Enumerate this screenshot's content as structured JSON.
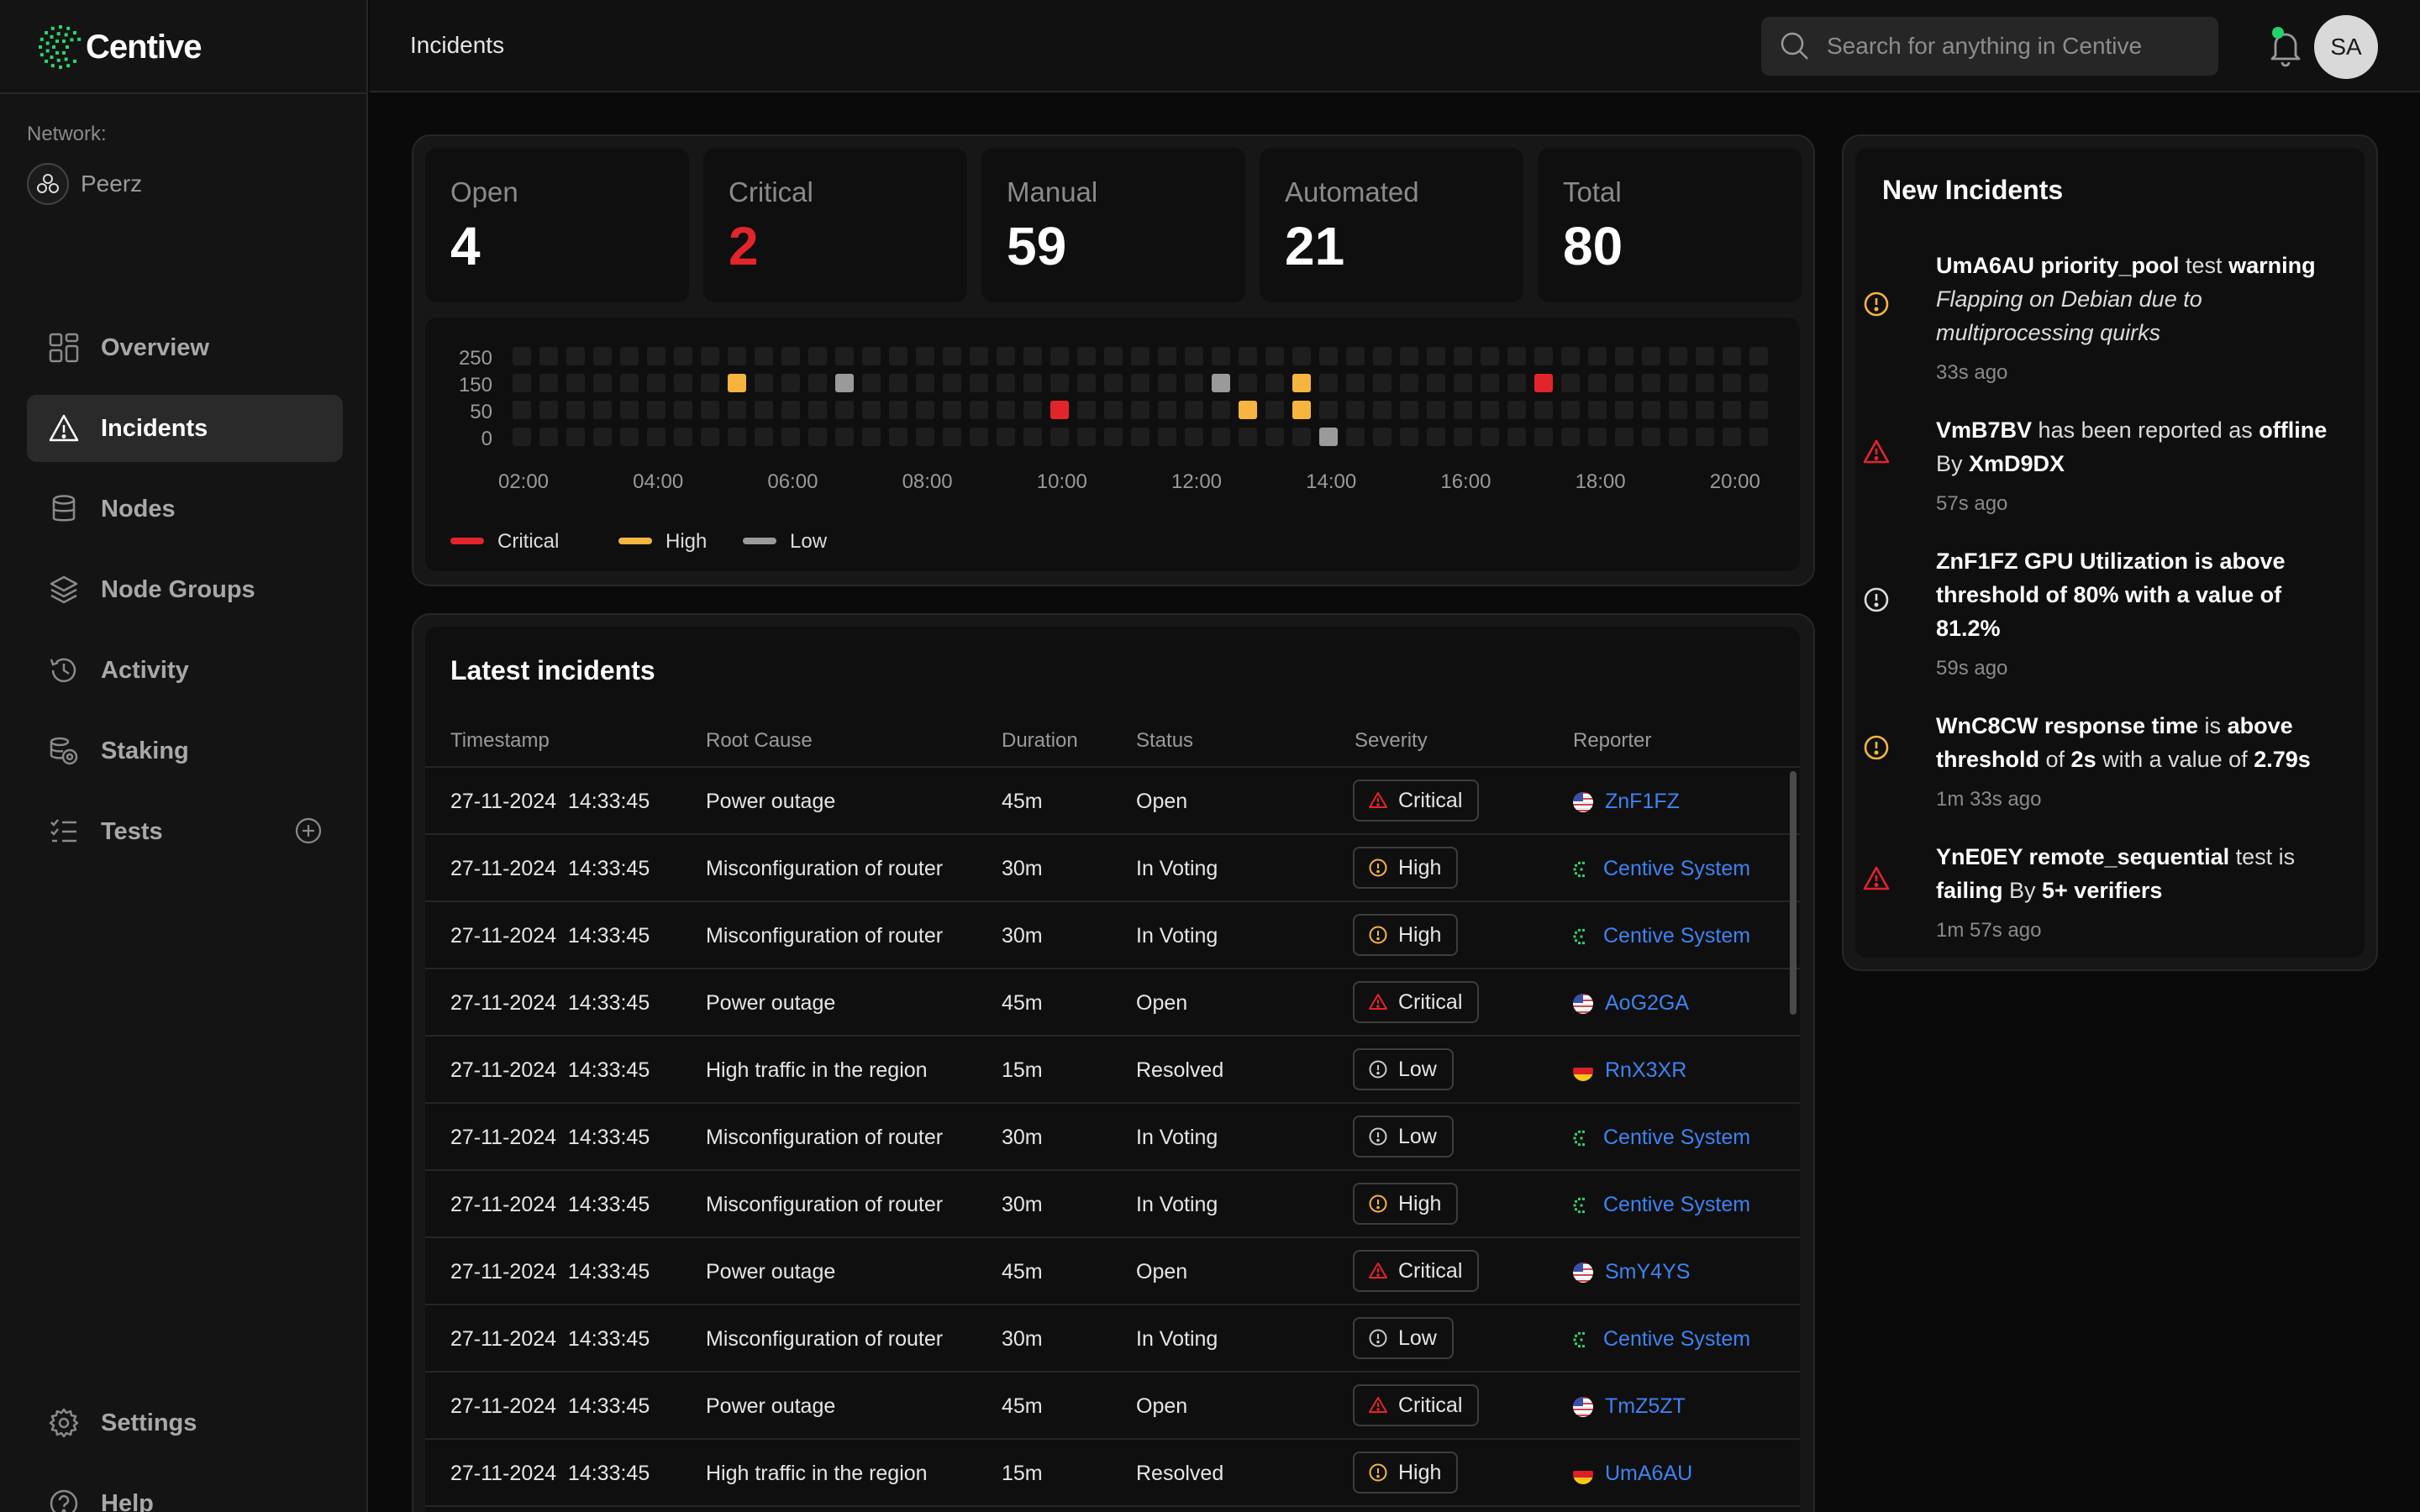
{
  "app": {
    "name": "Centive"
  },
  "sidebar": {
    "network_label": "Network:",
    "network_name": "Peerz",
    "items": [
      {
        "label": "Overview",
        "icon": "grid-icon"
      },
      {
        "label": "Incidents",
        "icon": "alert-triangle-icon",
        "active": true
      },
      {
        "label": "Nodes",
        "icon": "database-icon"
      },
      {
        "label": "Node Groups",
        "icon": "layers-icon"
      },
      {
        "label": "Activity",
        "icon": "history-icon"
      },
      {
        "label": "Staking",
        "icon": "coins-icon"
      },
      {
        "label": "Tests",
        "icon": "checklist-icon",
        "action_icon": "plus-circle-icon"
      }
    ],
    "bottom_items": [
      {
        "label": "Settings",
        "icon": "gear-icon"
      },
      {
        "label": "Help",
        "icon": "help-circle-icon"
      }
    ]
  },
  "header": {
    "title": "Incidents",
    "search_placeholder": "Search for anything in Centive",
    "avatar_initials": "SA"
  },
  "stats": [
    {
      "label": "Open",
      "value": "4"
    },
    {
      "label": "Critical",
      "value": "2",
      "color": "#e3242b"
    },
    {
      "label": "Manual",
      "value": "59"
    },
    {
      "label": "Automated",
      "value": "21"
    },
    {
      "label": "Total",
      "value": "80"
    }
  ],
  "chart_data": {
    "type": "heatmap",
    "y_ticks": [
      "250",
      "150",
      "50",
      "0"
    ],
    "x_ticks": [
      "02:00",
      "04:00",
      "06:00",
      "08:00",
      "10:00",
      "12:00",
      "14:00",
      "16:00",
      "18:00",
      "20:00"
    ],
    "columns": 47,
    "rows": 4,
    "cells": [
      {
        "col": 8,
        "row": 150,
        "severity": "High"
      },
      {
        "col": 12,
        "row": 150,
        "severity": "Low"
      },
      {
        "col": 20,
        "row": 50,
        "severity": "Critical"
      },
      {
        "col": 26,
        "row": 150,
        "severity": "Low"
      },
      {
        "col": 27,
        "row": 50,
        "severity": "High"
      },
      {
        "col": 29,
        "row": 150,
        "severity": "High"
      },
      {
        "col": 29,
        "row": 50,
        "severity": "High"
      },
      {
        "col": 30,
        "row": 0,
        "severity": "Low"
      },
      {
        "col": 38,
        "row": 150,
        "severity": "Critical"
      }
    ],
    "legend": [
      {
        "name": "Critical",
        "color": "#e3242b"
      },
      {
        "name": "High",
        "color": "#f5b53f"
      },
      {
        "name": "Low",
        "color": "#9a9a9a"
      }
    ],
    "empty_color": "#1e1e1e"
  },
  "latest": {
    "title": "Latest incidents",
    "columns": [
      "Timestamp",
      "Root Cause",
      "Duration",
      "Status",
      "Severity",
      "Reporter"
    ],
    "rows": [
      {
        "date": "27-11-2024",
        "time": "14:33:45",
        "cause": "Power outage",
        "duration": "45m",
        "status": "Open",
        "severity": "Critical",
        "reporter": "ZnF1FZ",
        "flag": "us"
      },
      {
        "date": "27-11-2024",
        "time": "14:33:45",
        "cause": "Misconfiguration of router",
        "duration": "30m",
        "status": "In Voting",
        "severity": "High",
        "reporter": "Centive System",
        "flag": "centive"
      },
      {
        "date": "27-11-2024",
        "time": "14:33:45",
        "cause": "Misconfiguration of router",
        "duration": "30m",
        "status": "In Voting",
        "severity": "High",
        "reporter": "Centive System",
        "flag": "centive"
      },
      {
        "date": "27-11-2024",
        "time": "14:33:45",
        "cause": "Power outage",
        "duration": "45m",
        "status": "Open",
        "severity": "Critical",
        "reporter": "AoG2GA",
        "flag": "us"
      },
      {
        "date": "27-11-2024",
        "time": "14:33:45",
        "cause": "High traffic in the region",
        "duration": "15m",
        "status": "Resolved",
        "severity": "Low",
        "reporter": "RnX3XR",
        "flag": "de"
      },
      {
        "date": "27-11-2024",
        "time": "14:33:45",
        "cause": "Misconfiguration of router",
        "duration": "30m",
        "status": "In Voting",
        "severity": "Low",
        "reporter": "Centive System",
        "flag": "centive"
      },
      {
        "date": "27-11-2024",
        "time": "14:33:45",
        "cause": "Misconfiguration of router",
        "duration": "30m",
        "status": "In Voting",
        "severity": "High",
        "reporter": "Centive System",
        "flag": "centive"
      },
      {
        "date": "27-11-2024",
        "time": "14:33:45",
        "cause": "Power outage",
        "duration": "45m",
        "status": "Open",
        "severity": "Critical",
        "reporter": "SmY4YS",
        "flag": "us"
      },
      {
        "date": "27-11-2024",
        "time": "14:33:45",
        "cause": "Misconfiguration of router",
        "duration": "30m",
        "status": "In Voting",
        "severity": "Low",
        "reporter": "Centive System",
        "flag": "centive"
      },
      {
        "date": "27-11-2024",
        "time": "14:33:45",
        "cause": "Power outage",
        "duration": "45m",
        "status": "Open",
        "severity": "Critical",
        "reporter": "TmZ5ZT",
        "flag": "us"
      },
      {
        "date": "27-11-2024",
        "time": "14:33:45",
        "cause": "High traffic in the region",
        "duration": "15m",
        "status": "Resolved",
        "severity": "High",
        "reporter": "UmA6AU",
        "flag": "de"
      }
    ]
  },
  "new_incidents": {
    "title": "New Incidents",
    "items": [
      {
        "icon": "warning-circle-icon",
        "color": "#f5b53f",
        "lines": [
          "<b>UmA6AU priority_pool</b> test <b>warning</b>",
          "<i>Flapping on Debian due to</i>",
          "<i>multiprocessing quirks</i>"
        ],
        "time": "33s ago"
      },
      {
        "icon": "alert-triangle-icon",
        "color": "#e3242b",
        "lines": [
          "<b>VmB7BV</b> has been reported as <b>offline</b>",
          "By <b>XmD9DX</b>"
        ],
        "time": "57s ago"
      },
      {
        "icon": "info-circle-icon",
        "color": "#dcdcdc",
        "lines": [
          "<b>ZnF1FZ GPU Utilization is above</b>",
          "<b>threshold of 80% with a value of</b>",
          "<b>81.2%</b>"
        ],
        "time": "59s ago"
      },
      {
        "icon": "warning-circle-icon",
        "color": "#f5b53f",
        "lines": [
          "<b>WnC8CW response time</b> is <b>above</b>",
          "<b>threshold</b> of <b>2s</b> with a value of <b>2.79s</b>"
        ],
        "time": "1m 33s ago"
      },
      {
        "icon": "alert-triangle-icon",
        "color": "#e3242b",
        "lines": [
          "<b>YnE0EY remote_sequential</b> test is",
          "<b>failing</b> By <b>5+ verifiers</b>"
        ],
        "time": "1m 57s ago"
      }
    ]
  }
}
